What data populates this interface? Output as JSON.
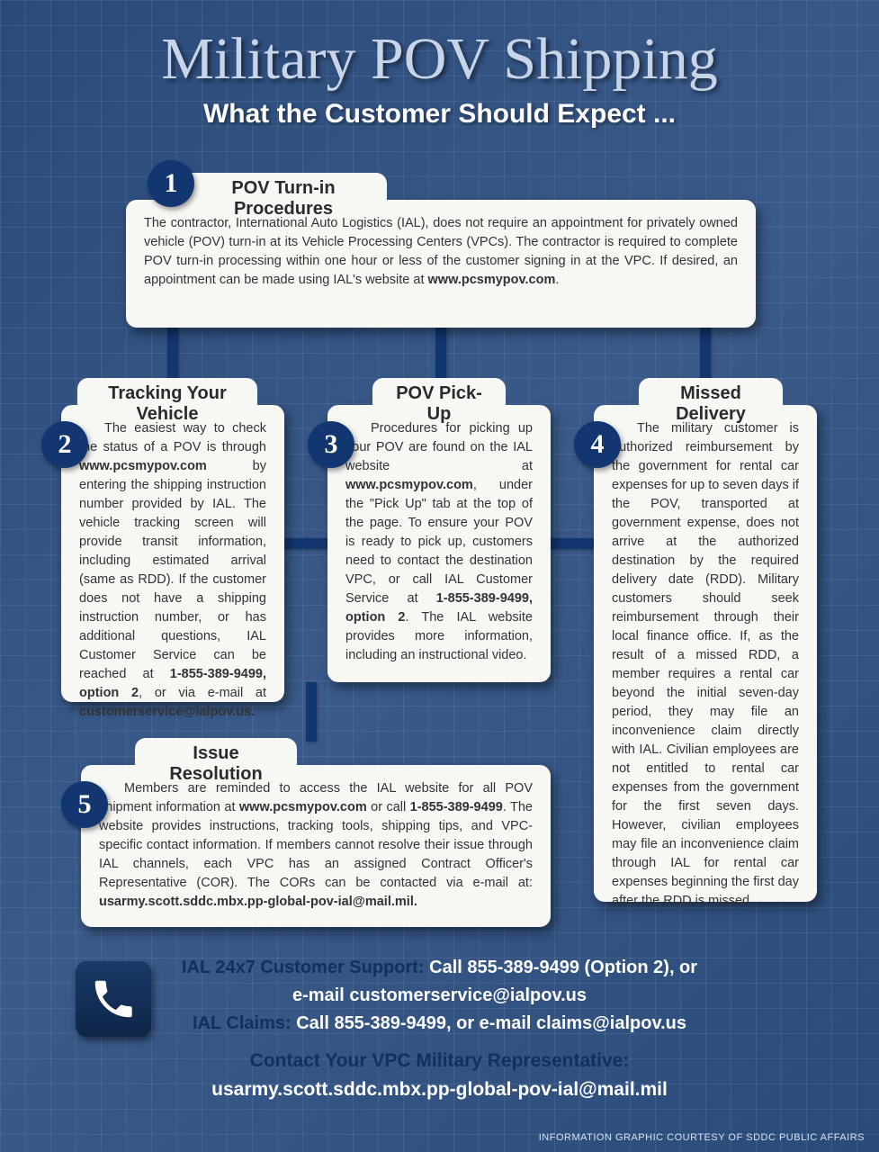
{
  "header": {
    "title": "Military POV Shipping",
    "subtitle": "What the Customer Should Expect ..."
  },
  "cards": {
    "c1": {
      "num": "1",
      "title": "POV Turn-in Procedures",
      "body_html": "The contractor, International Auto Logistics (IAL), does not require an appointment for privately owned vehicle (POV) turn-in at its Vehicle Processing Centers (VPCs).  The contractor is required to complete POV turn-in processing within one hour or less of the customer signing in at the VPC.  If desired, an appointment can be made using IAL's website at <b>www.pcsmypov.com</b>."
    },
    "c2": {
      "num": "2",
      "title": "Tracking Your Vehicle",
      "body_html": "The easiest way to check the status of a POV is through <b>www.pcsmypov.com</b> by entering the shipping instruction number provided by IAL.  The vehicle tracking screen will provide transit information, including estimated arrival (same as RDD). If the customer does not have a shipping instruction number, or has additional questions, IAL Customer Service can be reached at <b>1-855-389-9499, option 2</b>, or via e-mail at <b>customerservice@ialpov.us.</b>"
    },
    "c3": {
      "num": "3",
      "title": "POV Pick-Up",
      "body_html": "Procedures for picking up your POV are found on the IAL website at <b>www.pcsmypov.com</b>, under the \"Pick Up\" tab at the top of the page.  To ensure your POV is ready to pick up, customers need to contact the destination VPC, or call IAL Customer Service at <b>1-855-389-9499, option 2</b>. The IAL website provides more information, including an instructional video."
    },
    "c4": {
      "num": "4",
      "title": "Missed Delivery",
      "body_html": "The military customer is authorized reimbursement by the government for rental car expenses for up to seven days if the POV, transported at government expense, does not arrive at the authorized destination by the required delivery date (RDD). Military customers should seek reimbursement through their local finance office. If, as the result of a missed RDD, a member requires a rental car beyond the initial seven-day period, they may file an inconvenience claim directly with IAL. Civilian employees are not entitled to rental car expenses from the government for the first seven days. However, civilian employees may file an inconvenience claim through IAL for rental car expenses beginning the first day after the RDD is missed."
    },
    "c5": {
      "num": "5",
      "title": "Issue Resolution",
      "body_html": "Members are reminded to access the IAL website for all POV shipment information at <b>www.pcsmypov.com</b> or call <b>1-855-389-9499</b>.  The website provides instructions, tracking tools, shipping tips, and VPC-specific contact information.  If members cannot resolve their issue through IAL channels, each VPC has an assigned Contract Officer's Representative (COR).  The CORs can be contacted via e-mail at: <b>usarmy.scott.sddc.mbx.pp-global-pov-ial@mail.mil.</b>"
    }
  },
  "contact": {
    "support_label": "IAL 24x7 Customer Support: ",
    "support_value1": "Call 855-389-9499 (Option 2), or",
    "support_value2": "e-mail customerservice@ialpov.us",
    "claims_label": "IAL Claims: ",
    "claims_value": "Call 855-389-9499, or e-mail claims@ialpov.us",
    "rep_label": "Contact Your VPC Military Representative:",
    "rep_value": "usarmy.scott.sddc.mbx.pp-global-pov-ial@mail.mil"
  },
  "credit": "INFORMATION GRAPHIC COURTESY OF SDDC PUBLIC AFFAIRS",
  "colors": {
    "badge_bg": "#12366f",
    "card_bg": "#f7f7f4",
    "title_color": "#c8d4e8",
    "bg_from": "#2a4a7a",
    "bg_to": "#3a5a8a"
  }
}
